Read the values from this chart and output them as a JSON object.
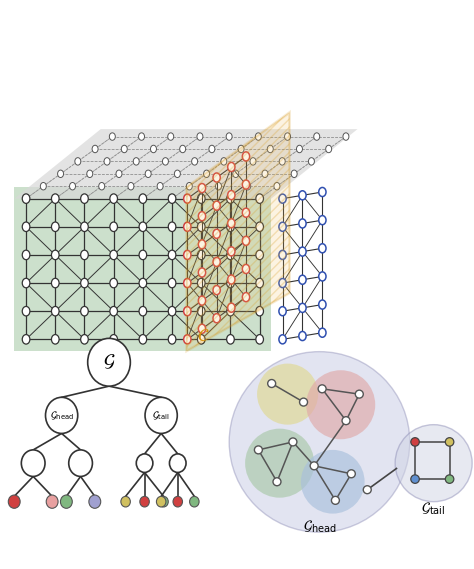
{
  "bg_color": "#ffffff",
  "green_bg": "#cce0cc",
  "gray_bg": "#d8d8d8",
  "orange_color": "#d4900a",
  "red_node_color": "#d04040",
  "blue_node_color": "#3050b0",
  "black_node_color": "#333333",
  "gray_node_edge": "#555555",
  "tree_leaf_colors": [
    "#d04040",
    "#e8a0a0",
    "#80b880",
    "#a0a0d0",
    "#d0c060",
    "#d04040",
    "#80b880"
  ],
  "tail_node_colors": [
    "#d04040",
    "#d0c060",
    "#80b880",
    "#6090d0"
  ],
  "bottom_right": {
    "big_circle_color": "#c0c4e0",
    "yellow_circle_color": "#e0d890",
    "red_circle_color": "#e0a8a8",
    "green_circle_color": "#a8c8a8",
    "blue_circle_color": "#a8c0dc",
    "tail_circle_color": "#d0d4e4"
  }
}
